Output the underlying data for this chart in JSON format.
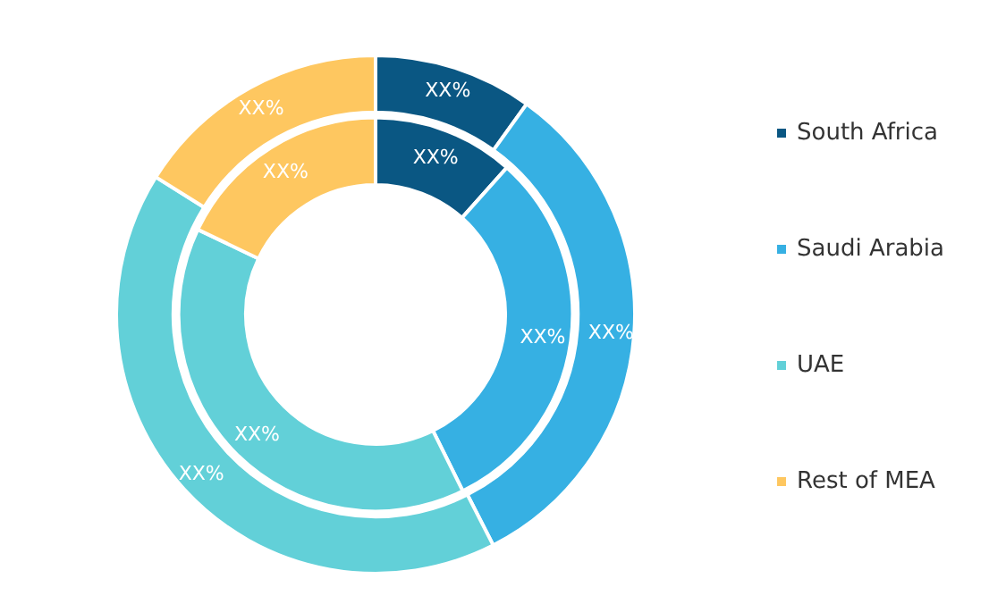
{
  "chart_data": {
    "type": "donut",
    "categories": [
      "South Africa",
      "Saudi Arabia",
      "UAE",
      "Rest of MEA"
    ],
    "colors": [
      "#0a5783",
      "#36b0e3",
      "#62d0d8",
      "#fec760"
    ],
    "legend": "right",
    "series": [
      {
        "values": [
          9.9,
          32.6,
          41.4,
          16.1
        ],
        "value_labels": [
          "XX%",
          "XX%",
          "XX%",
          "XX%"
        ]
      },
      {
        "values": [
          11.6,
          31.1,
          39.4,
          17.9
        ],
        "value_labels": [
          "XX%",
          "XX%",
          "XX%",
          "XX%"
        ]
      }
    ]
  }
}
